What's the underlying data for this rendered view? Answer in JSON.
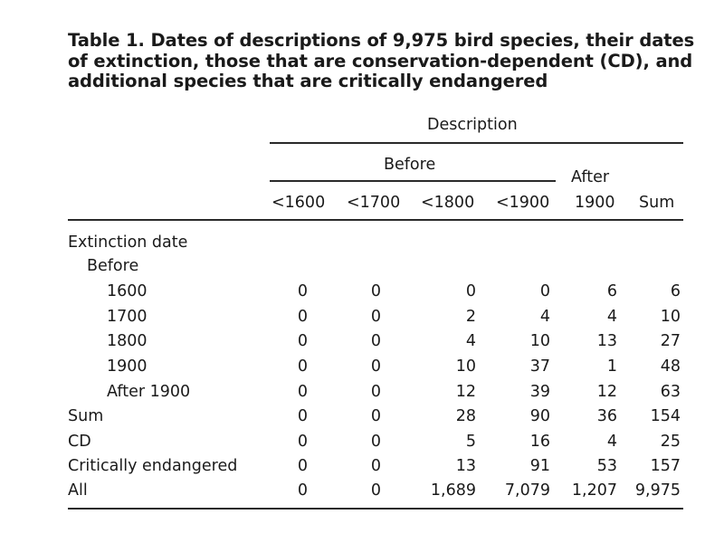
{
  "title": "Table 1. Dates of descriptions of 9,975 bird species, their dates of extinction, those that are conservation-dependent (CD), and additional species that are critically endangered",
  "header": {
    "group_label": "Description",
    "before_label": "Before",
    "after_label_line1": "After",
    "after_label_line2": "1900",
    "sum_label": "Sum",
    "columns": [
      "<1600",
      "<1700",
      "<1800",
      "<1900"
    ]
  },
  "stub": {
    "extinction_date_label": "Extinction date",
    "before_label": "Before"
  },
  "rows": [
    {
      "label": "1600",
      "values": [
        "0",
        "0",
        "0",
        "0",
        "6",
        "6"
      ]
    },
    {
      "label": "1700",
      "values": [
        "0",
        "0",
        "2",
        "4",
        "4",
        "10"
      ]
    },
    {
      "label": "1800",
      "values": [
        "0",
        "0",
        "4",
        "10",
        "13",
        "27"
      ]
    },
    {
      "label": "1900",
      "values": [
        "0",
        "0",
        "10",
        "37",
        "1",
        "48"
      ]
    },
    {
      "label": "After 1900",
      "values": [
        "0",
        "0",
        "12",
        "39",
        "12",
        "63"
      ]
    },
    {
      "label": "Sum",
      "values": [
        "0",
        "0",
        "28",
        "90",
        "36",
        "154"
      ]
    },
    {
      "label": "CD",
      "values": [
        "0",
        "0",
        "5",
        "16",
        "4",
        "25"
      ]
    },
    {
      "label": "Critically endangered",
      "values": [
        "0",
        "0",
        "13",
        "91",
        "53",
        "157"
      ]
    },
    {
      "label": "All",
      "values": [
        "0",
        "0",
        "1,689",
        "7,079",
        "1,207",
        "9,975"
      ]
    }
  ]
}
